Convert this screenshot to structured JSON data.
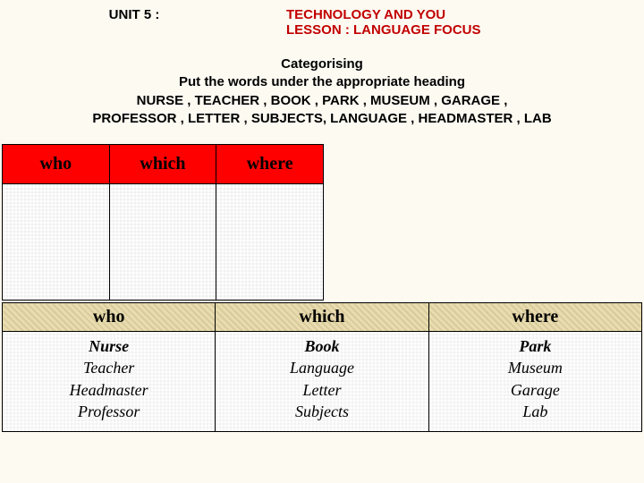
{
  "header": {
    "unit": "UNIT 5 :",
    "title1": "TECHNOLOGY AND YOU",
    "title2": "LESSON : LANGUAGE FOCUS"
  },
  "instructions": {
    "line1": "Categorising",
    "line2": "Put the words under the appropriate heading",
    "line3": "NURSE , TEACHER , BOOK , PARK , MUSEUM , GARAGE ,",
    "line4": "PROFESSOR , LETTER , SUBJECTS, LANGUAGE , HEADMASTER , LAB"
  },
  "table1": {
    "headers": [
      "who",
      "which",
      "where"
    ],
    "header_bg": "#ff0000",
    "cell_bg": "#ffffff"
  },
  "table2": {
    "headers": [
      "who",
      "which",
      "where"
    ],
    "header_bg": "#e8dcb0",
    "columns": [
      {
        "first": "Nurse",
        "rest": [
          "Teacher",
          "Headmaster",
          "Professor"
        ]
      },
      {
        "first": "Book",
        "rest": [
          "Language",
          "Letter",
          "Subjects"
        ]
      },
      {
        "first": "Park",
        "rest": [
          "Museum",
          "Garage",
          "Lab"
        ]
      }
    ]
  },
  "colors": {
    "page_bg": "#fdfaf2",
    "title_red": "#c10000",
    "text": "#000000",
    "border": "#000000"
  },
  "fonts": {
    "body": "Arial",
    "table": "Times New Roman",
    "heading_size_pt": 15,
    "table_header_size_pt": 20,
    "table_cell_size_pt": 18
  }
}
